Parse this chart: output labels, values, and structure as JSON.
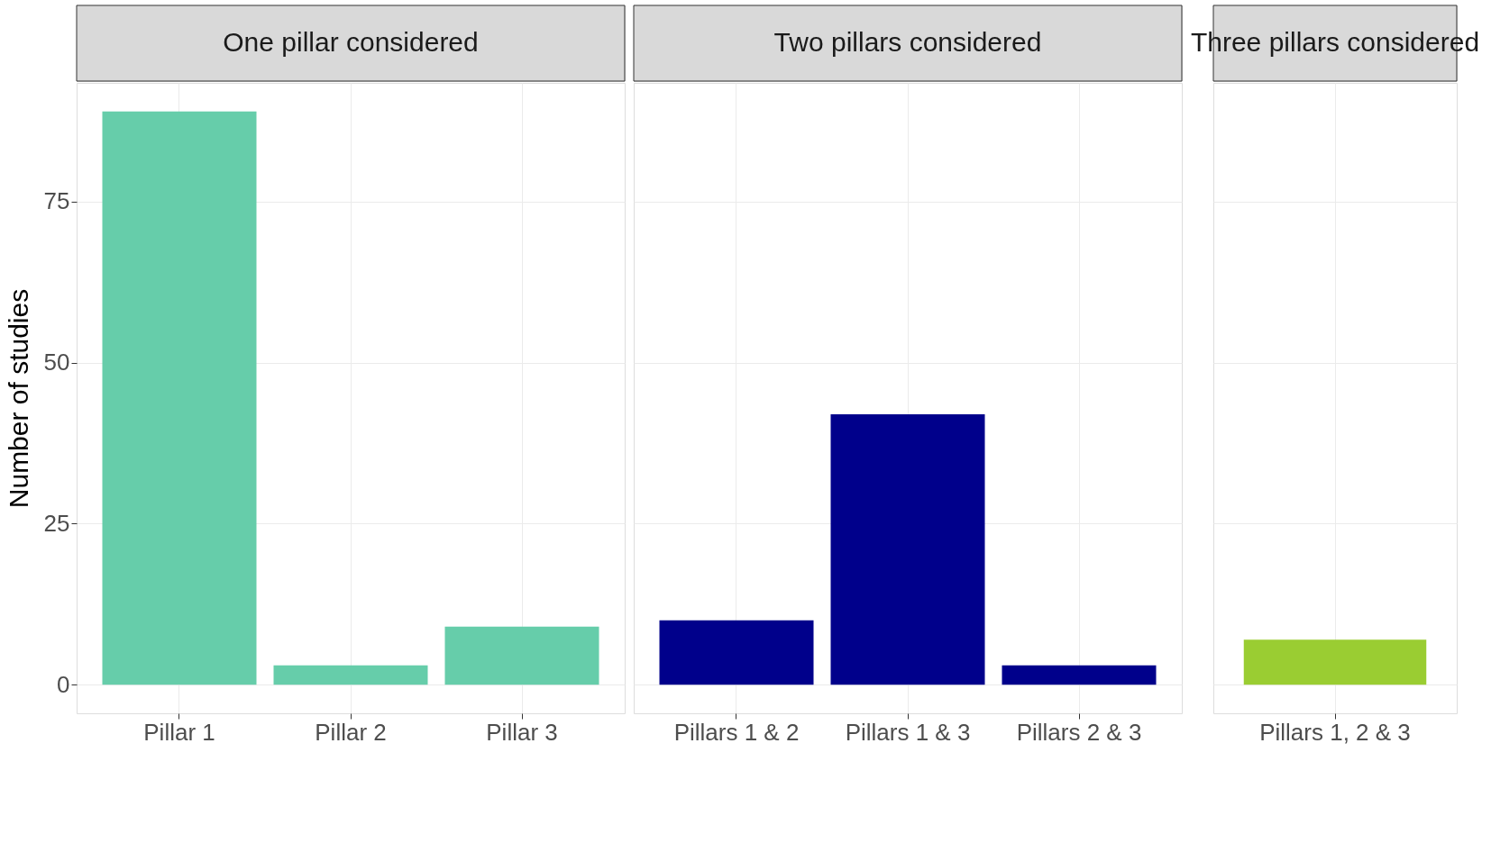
{
  "chart_data": [
    {
      "type": "bar",
      "title": "One pillar considered",
      "ylabel": "Number of studies",
      "categories": [
        "Pillar 1",
        "Pillar 2",
        "Pillar 3"
      ],
      "values": [
        89,
        3,
        9
      ],
      "color": "#66cdaa",
      "ylim": [
        -4.45,
        93.45
      ],
      "yticks": [
        0,
        25,
        50,
        75
      ],
      "grid": true
    },
    {
      "type": "bar",
      "title": "Two pillars considered",
      "categories": [
        "Pillars 1 & 2",
        "Pillars 1 & 3",
        "Pillars 2 & 3"
      ],
      "values": [
        10,
        42,
        3
      ],
      "color": "#00008b",
      "ylim": [
        -4.45,
        93.45
      ],
      "yticks": [
        0,
        25,
        50,
        75
      ],
      "grid": true,
      "tick_labels": "x"
    },
    {
      "type": "bar",
      "title": "Three pillars considered",
      "categories": [
        "Pillars 1, 2 & 3"
      ],
      "values": [
        7
      ],
      "color": "#9acd32",
      "ylim": [
        -4.45,
        93.45
      ],
      "yticks": [
        0,
        25,
        50,
        75
      ],
      "grid": true,
      "tick_labels": "x"
    }
  ]
}
